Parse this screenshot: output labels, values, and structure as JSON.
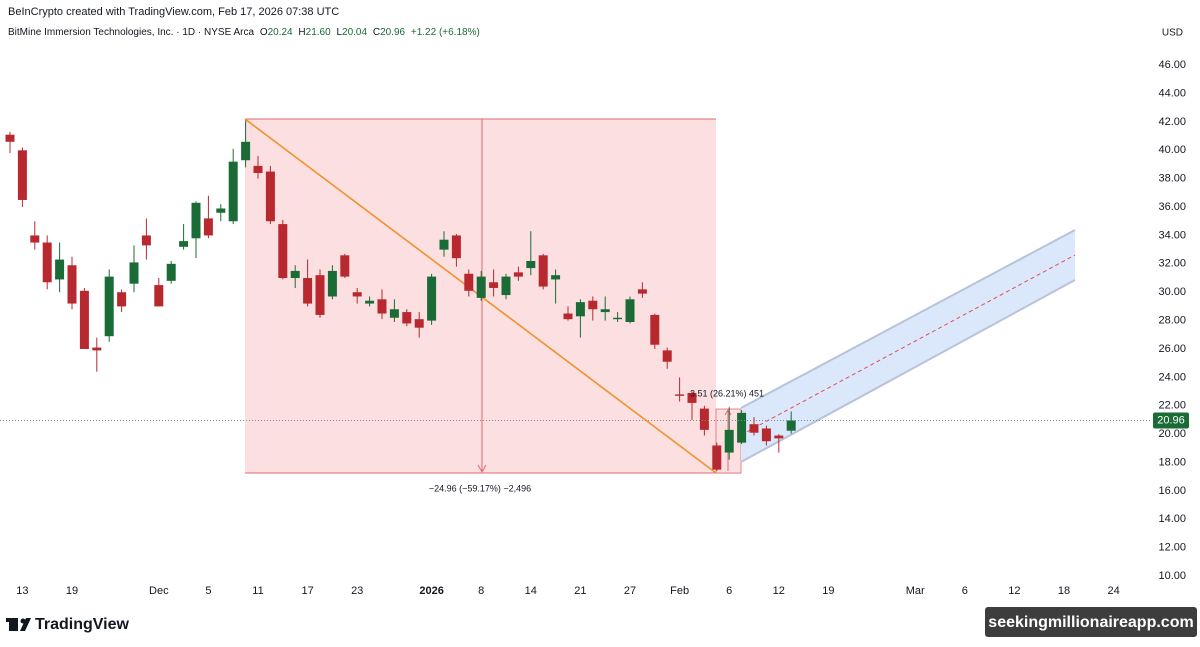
{
  "chart_data": {
    "type": "candlestick",
    "credit": "BeInCrypto created with TradingView.com, Feb 17, 2026 07:38 UTC",
    "symbol": "BitMine Immersion Technologies, Inc. · 1D · NYSE Arca",
    "legend": {
      "open_key": "O",
      "open": "20.24",
      "high_key": "H",
      "high": "21.60",
      "low_key": "L",
      "low": "20.04",
      "close_key": "C",
      "close": "20.96",
      "change": "+1.22 (+6.18%)"
    },
    "currency": "USD",
    "up_color": "#1a6b35",
    "down_color": "#b8282f",
    "categories": [
      null,
      "13",
      null,
      null,
      null,
      "19",
      null,
      null,
      null,
      null,
      null,
      null,
      "Dec",
      null,
      null,
      null,
      "5",
      null,
      null,
      null,
      "11",
      null,
      null,
      null,
      "17",
      null,
      null,
      null,
      "23",
      null,
      null,
      null,
      null,
      null,
      "2026",
      null,
      null,
      null,
      "8",
      null,
      null,
      null,
      "14",
      null,
      null,
      null,
      "21",
      null,
      null,
      null,
      "27",
      null,
      null,
      null,
      "Feb",
      null,
      null,
      null,
      "6",
      null,
      null,
      null,
      "12",
      null,
      null,
      null,
      "19",
      null,
      null,
      null,
      null,
      null,
      null,
      "Mar",
      null,
      null,
      null,
      "6",
      null,
      null,
      null,
      "12",
      null,
      null,
      null,
      "18",
      null,
      null,
      null,
      "24",
      null,
      null
    ],
    "open": [
      41.1,
      40,
      34,
      33.5,
      30.9,
      31.9,
      30.1,
      26.1,
      26.9,
      30,
      30.6,
      34,
      30.5,
      30.8,
      33.2,
      33.8,
      35.2,
      35.6,
      35,
      39.3,
      38.9,
      38.5,
      34.8,
      31,
      31,
      31.2,
      29.7,
      32.6,
      30,
      29.2,
      29.5,
      28.2,
      28.6,
      28.1,
      28,
      33,
      34,
      31.3,
      29.6,
      30.7,
      29.8,
      31.4,
      31.7,
      32.6,
      30.9,
      28.5,
      28.3,
      29.4,
      28.6,
      28.1,
      27.9,
      30.2,
      28.4,
      25.9,
      22.8,
      22.9,
      21.8,
      19.2,
      18.7,
      19.4,
      20.7,
      20.4,
      19.9,
      20.24,
      null,
      null,
      null,
      null,
      null,
      null,
      null,
      null,
      null,
      null,
      null,
      null,
      null,
      null,
      null,
      null,
      null,
      null,
      null,
      null,
      null,
      null,
      null,
      null,
      null,
      null,
      null,
      null
    ],
    "high": [
      41.3,
      40.2,
      35,
      34,
      33.5,
      32.5,
      30.3,
      26.8,
      31.6,
      30.2,
      33.3,
      35.2,
      31,
      32.2,
      34.8,
      36.4,
      36.8,
      36.2,
      40.1,
      42.1,
      39.6,
      38.9,
      35.1,
      31.9,
      32.3,
      31.6,
      31.9,
      32.7,
      30.3,
      29.7,
      30.2,
      29.5,
      28.8,
      28.6,
      31.3,
      34.3,
      34.1,
      31.6,
      31.5,
      31.6,
      31.3,
      31.8,
      34.3,
      32.7,
      31.6,
      29,
      29.5,
      29.7,
      29.7,
      28.6,
      29.7,
      30.7,
      28.5,
      26.1,
      24,
      23,
      22,
      19.4,
      21.9,
      21.7,
      21.2,
      20.6,
      20,
      21.6,
      null,
      null,
      null,
      null,
      null,
      null,
      null,
      null,
      null,
      null,
      null,
      null,
      null,
      null,
      null,
      null,
      null,
      null,
      null,
      null,
      null,
      null,
      null,
      null,
      null,
      null,
      null,
      null
    ],
    "low": [
      39.8,
      36,
      33,
      30.2,
      30,
      28.8,
      26,
      24.4,
      26.5,
      28.6,
      30,
      32.3,
      29,
      30.6,
      33,
      32.4,
      33.8,
      35,
      34.8,
      38.8,
      38,
      34.8,
      30.9,
      30.3,
      29,
      28.2,
      29.5,
      31,
      29.2,
      29,
      28.1,
      27.9,
      27.6,
      26.8,
      27.7,
      32.5,
      31.8,
      29.7,
      29.4,
      29.7,
      29.5,
      30.8,
      31.2,
      30.2,
      29.2,
      28,
      26.8,
      28,
      28,
      27.9,
      27.8,
      29.6,
      26,
      24.6,
      22.3,
      21,
      19.9,
      17.4,
      18.2,
      19.3,
      19.9,
      19.2,
      18.7,
      20.04,
      null,
      null,
      null,
      null,
      null,
      null,
      null,
      null,
      null,
      null,
      null,
      null,
      null,
      null,
      null,
      null,
      null,
      null,
      null,
      null,
      null,
      null,
      null,
      null,
      null,
      null,
      null,
      null
    ],
    "close": [
      40.6,
      36.5,
      33.5,
      30.7,
      32.3,
      29.2,
      26,
      25.9,
      31.1,
      29,
      32.1,
      33.3,
      29,
      32,
      33.6,
      36.3,
      34,
      35.9,
      39.2,
      40.6,
      38.4,
      35,
      31,
      31.5,
      29.2,
      28.4,
      31.5,
      31.1,
      29.7,
      29.4,
      28.5,
      28.8,
      27.8,
      27.5,
      31.1,
      33.7,
      32.4,
      30.1,
      31.1,
      30.3,
      31.1,
      31.1,
      32.2,
      30.4,
      31.2,
      28.1,
      29.3,
      28.8,
      28.8,
      28.2,
      29.5,
      29.9,
      26.3,
      25.1,
      22.7,
      22.2,
      20.3,
      17.5,
      20.3,
      21.5,
      20.1,
      19.5,
      19.7,
      20.96,
      null,
      null,
      null,
      null,
      null,
      null,
      null,
      null,
      null,
      null,
      null,
      null,
      null,
      null,
      null,
      null,
      null,
      null,
      null,
      null,
      null,
      null,
      null,
      null,
      null,
      null,
      null,
      null
    ],
    "ylim": [
      9.58,
      47.42
    ],
    "yticks": [
      {
        "value": 10,
        "label": "10.00"
      },
      {
        "value": 12,
        "label": "12.00"
      },
      {
        "value": 14,
        "label": "14.00"
      },
      {
        "value": 16,
        "label": "16.00"
      },
      {
        "value": 18,
        "label": "18.00"
      },
      {
        "value": 20,
        "label": "20.00"
      },
      {
        "value": 22,
        "label": "22.00"
      },
      {
        "value": 24,
        "label": "24.00"
      },
      {
        "value": 26,
        "label": "26.00"
      },
      {
        "value": 28,
        "label": "28.00"
      },
      {
        "value": 30,
        "label": "30.00"
      },
      {
        "value": 32,
        "label": "32.00"
      },
      {
        "value": 34,
        "label": "34.00"
      },
      {
        "value": 36,
        "label": "36.00"
      },
      {
        "value": 38,
        "label": "38.00"
      },
      {
        "value": 40,
        "label": "40.00"
      },
      {
        "value": 42,
        "label": "42.00"
      },
      {
        "value": 44,
        "label": "44.00"
      },
      {
        "value": 46,
        "label": "46.00"
      }
    ],
    "annotations": [
      "−24.96 (−59.17%) −2,496",
      "3.51 (26.21%) 451"
    ],
    "brand": "TradingView",
    "watermark": "seekingmillionaireapp.com"
  }
}
